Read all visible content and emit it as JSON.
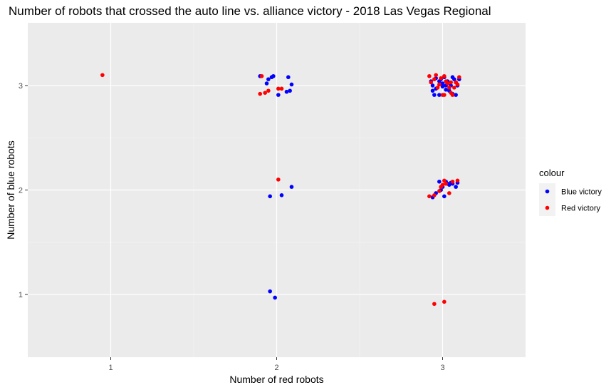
{
  "chart_data": {
    "type": "scatter",
    "title": "Number of robots that crossed the auto line vs. alliance victory - 2018 Las Vegas Regional",
    "xlabel": "Number of red robots",
    "ylabel": "Number of blue robots",
    "xlim": [
      0.5,
      3.5
    ],
    "ylim": [
      0.4,
      3.6
    ],
    "x_ticks": [
      1,
      2,
      3
    ],
    "y_ticks": [
      1,
      2,
      3
    ],
    "x_tick_labels": [
      "1",
      "2",
      "3"
    ],
    "y_tick_labels": [
      "1",
      "2",
      "3"
    ],
    "grid": true,
    "background": "#ebebeb",
    "legend": {
      "title": "colour",
      "position": "right",
      "entries": [
        {
          "label": "Blue victory",
          "color": "#0000ff"
        },
        {
          "label": "Red victory",
          "color": "#ff0000"
        }
      ]
    },
    "series": [
      {
        "name": "Blue victory",
        "color": "#0000ff",
        "points": [
          [
            1.9,
            3.09
          ],
          [
            1.94,
            3.02
          ],
          [
            1.95,
            3.06
          ],
          [
            1.97,
            3.08
          ],
          [
            1.98,
            3.09
          ],
          [
            2.01,
            2.91
          ],
          [
            2.06,
            2.94
          ],
          [
            2.07,
            3.08
          ],
          [
            2.08,
            2.95
          ],
          [
            2.09,
            3.01
          ],
          [
            2.93,
            3.04
          ],
          [
            2.94,
            3.0
          ],
          [
            2.94,
            2.95
          ],
          [
            2.95,
            2.91
          ],
          [
            2.96,
            3.07
          ],
          [
            2.96,
            2.97
          ],
          [
            2.98,
            3.04
          ],
          [
            2.98,
            2.91
          ],
          [
            2.99,
            3.06
          ],
          [
            3.0,
            2.99
          ],
          [
            3.0,
            3.02
          ],
          [
            3.01,
            3.08
          ],
          [
            3.02,
            3.0
          ],
          [
            3.02,
            2.96
          ],
          [
            3.03,
            3.04
          ],
          [
            3.04,
            2.95
          ],
          [
            3.05,
            3.0
          ],
          [
            3.06,
            3.08
          ],
          [
            3.07,
            3.06
          ],
          [
            3.08,
            2.91
          ],
          [
            3.08,
            3.03
          ],
          [
            3.09,
            3.0
          ],
          [
            3.1,
            3.06
          ],
          [
            3.06,
            2.92
          ],
          [
            1.96,
            1.94
          ],
          [
            2.03,
            1.95
          ],
          [
            2.09,
            2.03
          ],
          [
            2.94,
            1.93
          ],
          [
            2.96,
            1.97
          ],
          [
            2.98,
            2.08
          ],
          [
            2.99,
            2.0
          ],
          [
            3.0,
            2.03
          ],
          [
            3.01,
            1.94
          ],
          [
            3.02,
            2.08
          ],
          [
            3.04,
            2.05
          ],
          [
            3.05,
            2.07
          ],
          [
            3.06,
            2.06
          ],
          [
            3.08,
            2.03
          ],
          [
            3.09,
            2.07
          ],
          [
            3.03,
            2.06
          ],
          [
            1.96,
            1.03
          ],
          [
            1.99,
            0.97
          ]
        ]
      },
      {
        "name": "Red victory",
        "color": "#ff0000",
        "points": [
          [
            0.95,
            3.1
          ],
          [
            1.9,
            2.92
          ],
          [
            1.91,
            3.09
          ],
          [
            1.93,
            2.93
          ],
          [
            1.95,
            2.95
          ],
          [
            2.01,
            2.97
          ],
          [
            2.03,
            2.97
          ],
          [
            2.92,
            3.09
          ],
          [
            2.93,
            3.03
          ],
          [
            2.95,
            3.06
          ],
          [
            2.96,
            3.1
          ],
          [
            2.97,
            2.98
          ],
          [
            2.98,
            3.01
          ],
          [
            3.0,
            2.91
          ],
          [
            3.01,
            3.09
          ],
          [
            3.01,
            2.91
          ],
          [
            3.02,
            3.04
          ],
          [
            3.03,
            3.02
          ],
          [
            3.04,
            2.98
          ],
          [
            3.05,
            2.93
          ],
          [
            3.05,
            3.03
          ],
          [
            3.06,
            2.91
          ],
          [
            3.07,
            2.98
          ],
          [
            3.08,
            3.03
          ],
          [
            3.09,
            3.01
          ],
          [
            3.1,
            3.08
          ],
          [
            2.99,
            3.07
          ],
          [
            2.01,
            2.1
          ],
          [
            2.92,
            1.94
          ],
          [
            2.95,
            1.95
          ],
          [
            2.98,
            1.99
          ],
          [
            2.99,
            2.03
          ],
          [
            3.0,
            2.05
          ],
          [
            3.01,
            2.09
          ],
          [
            3.02,
            2.06
          ],
          [
            3.04,
            1.97
          ],
          [
            3.06,
            2.08
          ],
          [
            3.09,
            2.09
          ],
          [
            2.95,
            0.91
          ],
          [
            3.01,
            0.93
          ]
        ]
      }
    ]
  }
}
